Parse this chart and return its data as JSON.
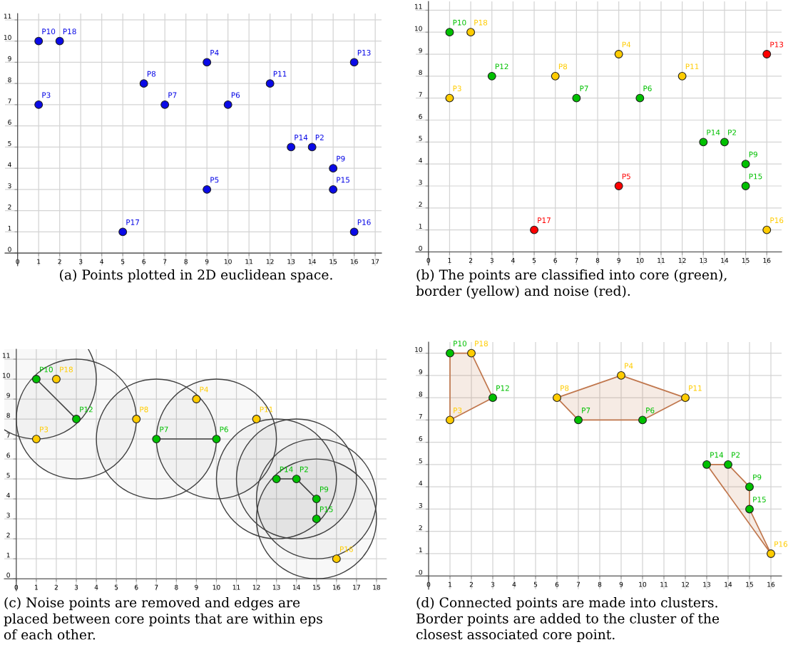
{
  "chart_data": [
    {
      "type": "scatter",
      "xlim": [
        -0.6,
        17.3
      ],
      "ylim": [
        -0.6,
        11.3
      ],
      "xticks": [
        0,
        1,
        2,
        3,
        4,
        5,
        6,
        7,
        8,
        9,
        10,
        11,
        12,
        13,
        14,
        15,
        16,
        17
      ],
      "yticks": [
        0,
        1,
        2,
        3,
        4,
        5,
        6,
        7,
        8,
        9,
        10,
        11
      ],
      "grid": true,
      "marker": "circle",
      "annotations": [
        "(a) Points plotted in 2D euclidean space."
      ],
      "series": [
        {
          "x": [
            14,
            1,
            9,
            9,
            10,
            7,
            6,
            15,
            1,
            12,
            16,
            13,
            15,
            16,
            5,
            2
          ],
          "values": [
            5,
            7,
            9,
            3,
            7,
            7,
            8,
            4,
            10,
            8,
            9,
            5,
            3,
            1,
            1,
            10
          ],
          "colors": [
            "#0a0ae6",
            "#0a0ae6",
            "#0a0ae6",
            "#0a0ae6",
            "#0a0ae6",
            "#0a0ae6",
            "#0a0ae6",
            "#0a0ae6",
            "#0a0ae6",
            "#0a0ae6",
            "#0a0ae6",
            "#0a0ae6",
            "#0a0ae6",
            "#0a0ae6",
            "#0a0ae6",
            "#0a0ae6"
          ],
          "value_labels": [
            "P2",
            "P3",
            "P4",
            "P5",
            "P6",
            "P7",
            "P8",
            "P9",
            "P10",
            "P11",
            "P13",
            "P14",
            "P15",
            "P16",
            "P17",
            "P18"
          ]
        }
      ]
    },
    {
      "type": "scatter",
      "xlim": [
        -0.6,
        16.7
      ],
      "ylim": [
        -0.6,
        11.4
      ],
      "xticks": [
        0,
        1,
        2,
        3,
        4,
        5,
        6,
        7,
        8,
        9,
        10,
        11,
        12,
        13,
        14,
        15,
        16
      ],
      "yticks": [
        0,
        1,
        2,
        3,
        4,
        5,
        6,
        7,
        8,
        9,
        10,
        11
      ],
      "grid": true,
      "marker": "circle",
      "annotations": [
        "(b) The points are classified into core (green),\nborder (yellow) and noise (red)."
      ],
      "series": [
        {
          "x": [
            14,
            1,
            9,
            9,
            10,
            7,
            6,
            15,
            1,
            12,
            3,
            16,
            13,
            15,
            16,
            5,
            2
          ],
          "values": [
            5,
            7,
            9,
            3,
            7,
            7,
            8,
            4,
            10,
            8,
            8,
            9,
            5,
            3,
            1,
            1,
            10
          ],
          "colors": [
            "#00c000",
            "#ffcc00",
            "#ffcc00",
            "#ff0000",
            "#00c000",
            "#00c000",
            "#ffcc00",
            "#00c000",
            "#00c000",
            "#ffcc00",
            "#00c000",
            "#ff0000",
            "#00c000",
            "#00c000",
            "#ffcc00",
            "#ff0000",
            "#ffcc00"
          ],
          "value_labels": [
            "P2",
            "P3",
            "P4",
            "P5",
            "P6",
            "P7",
            "P8",
            "P9",
            "P10",
            "P11",
            "P12",
            "P13",
            "P14",
            "P15",
            "P16",
            "P17",
            "P18"
          ]
        }
      ]
    },
    {
      "type": "scatter",
      "xlim": [
        -0.6,
        18.5
      ],
      "ylim": [
        -0.6,
        11.5
      ],
      "xticks": [
        0,
        1,
        2,
        3,
        4,
        5,
        6,
        7,
        8,
        9,
        10,
        11,
        12,
        13,
        14,
        15,
        16,
        17,
        18
      ],
      "yticks": [
        0,
        1,
        2,
        3,
        4,
        5,
        6,
        7,
        8,
        9,
        10,
        11
      ],
      "grid": true,
      "annotations": [
        "(c) Noise points are removed and edges are\nplaced between core points that are within eps\nof each other."
      ],
      "series": [
        {
          "type": "bubble",
          "x": [
            1,
            3,
            7,
            10,
            13,
            14,
            15,
            15
          ],
          "values": [
            10,
            8,
            7,
            7,
            5,
            5,
            4,
            3
          ],
          "sizes": [
            1,
            1,
            1,
            1,
            1,
            1,
            1,
            1
          ],
          "color": "#404040"
        },
        {
          "type": "line",
          "x": [
            1,
            3
          ],
          "values": [
            10,
            8
          ],
          "color": "#404040"
        },
        {
          "type": "line",
          "x": [
            7,
            10
          ],
          "values": [
            7,
            7
          ],
          "color": "#404040"
        },
        {
          "type": "line",
          "x": [
            13,
            14,
            15,
            15
          ],
          "values": [
            5,
            5,
            4,
            3
          ],
          "color": "#404040"
        },
        {
          "marker": "circle",
          "x": [
            14,
            1,
            9,
            10,
            7,
            6,
            15,
            1,
            12,
            3,
            13,
            15,
            16,
            2
          ],
          "values": [
            5,
            7,
            9,
            7,
            7,
            8,
            4,
            10,
            8,
            8,
            5,
            3,
            1,
            10
          ],
          "colors": [
            "#00c000",
            "#ffcc00",
            "#ffcc00",
            "#00c000",
            "#00c000",
            "#ffcc00",
            "#00c000",
            "#00c000",
            "#ffcc00",
            "#00c000",
            "#00c000",
            "#00c000",
            "#ffcc00",
            "#ffcc00"
          ],
          "value_labels": [
            "P2",
            "P3",
            "P4",
            "P6",
            "P7",
            "P8",
            "P9",
            "P10",
            "P11",
            "P12",
            "P14",
            "P15",
            "P16",
            "P18"
          ]
        }
      ]
    },
    {
      "type": "scatter",
      "xlim": [
        -0.6,
        16.5
      ],
      "ylim": [
        -0.6,
        10.5
      ],
      "xticks": [
        0,
        1,
        2,
        3,
        4,
        5,
        6,
        7,
        8,
        9,
        10,
        11,
        12,
        13,
        14,
        15,
        16
      ],
      "yticks": [
        0,
        1,
        2,
        3,
        4,
        5,
        6,
        7,
        8,
        9,
        10
      ],
      "grid": true,
      "annotations": [
        "(d) Connected points are made into clusters.\nBorder points are added to the cluster of the\nclosest associated core point."
      ],
      "series": [
        {
          "type": "area",
          "x": [
            1,
            2,
            3,
            1,
            1
          ],
          "values": [
            10,
            10,
            8,
            7,
            10
          ],
          "color": "#c0764c"
        },
        {
          "type": "area",
          "x": [
            6,
            9,
            12,
            10,
            7,
            6
          ],
          "values": [
            8,
            9,
            8,
            7,
            7,
            8
          ],
          "color": "#c0764c"
        },
        {
          "type": "area",
          "x": [
            13,
            14,
            15,
            15,
            16,
            13
          ],
          "values": [
            5,
            5,
            4,
            3,
            1,
            5
          ],
          "color": "#c0764c"
        },
        {
          "marker": "circle",
          "x": [
            14,
            1,
            9,
            10,
            7,
            6,
            15,
            1,
            12,
            3,
            13,
            15,
            16,
            2
          ],
          "values": [
            5,
            7,
            9,
            7,
            7,
            8,
            4,
            10,
            8,
            8,
            5,
            3,
            1,
            10
          ],
          "colors": [
            "#00c000",
            "#ffcc00",
            "#ffcc00",
            "#00c000",
            "#00c000",
            "#ffcc00",
            "#00c000",
            "#00c000",
            "#ffcc00",
            "#00c000",
            "#00c000",
            "#00c000",
            "#ffcc00",
            "#ffcc00"
          ],
          "value_labels": [
            "P2",
            "P3",
            "P4",
            "P6",
            "P7",
            "P8",
            "P9",
            "P10",
            "P11",
            "P12",
            "P14",
            "P15",
            "P16",
            "P18"
          ]
        }
      ]
    }
  ]
}
